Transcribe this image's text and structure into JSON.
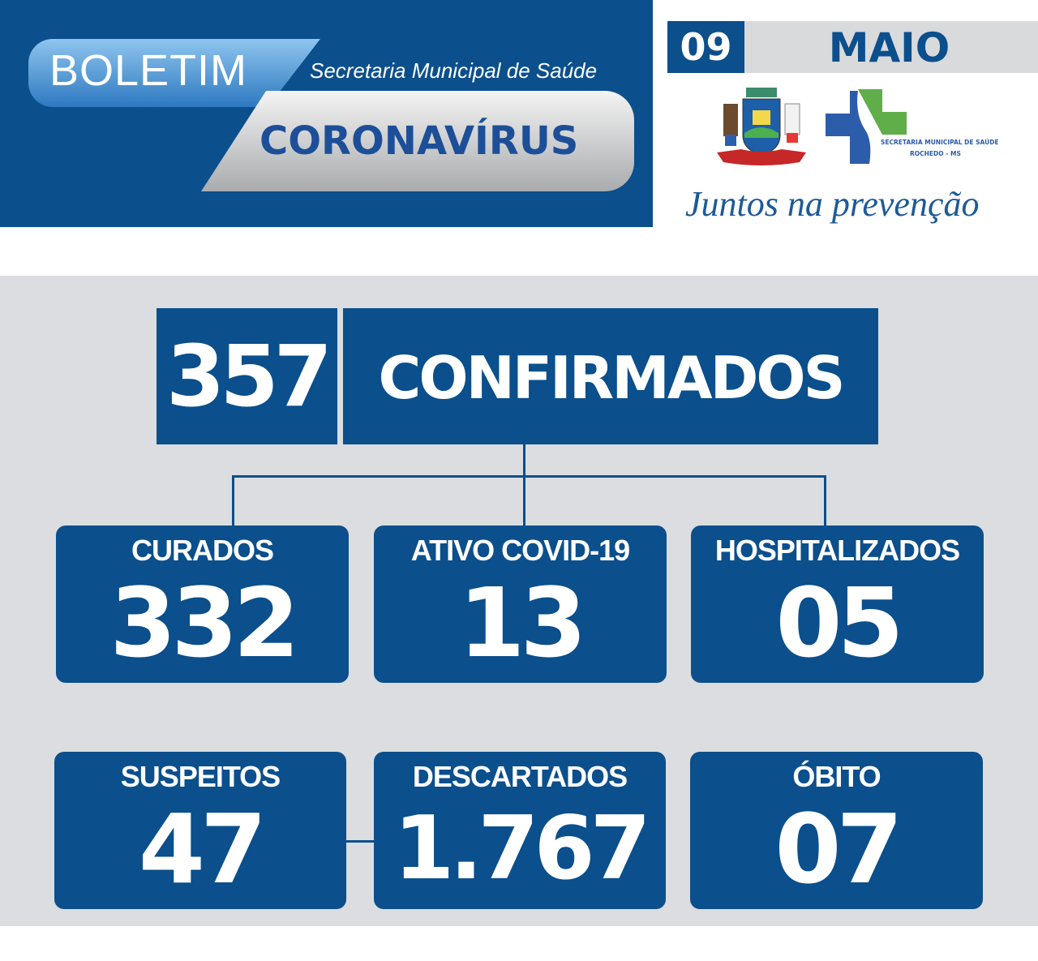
{
  "header": {
    "title": "BOLETIM",
    "subtitle": "Secretaria Municipal de Saúde",
    "topic": "CORONAVÍRUS"
  },
  "date": {
    "day": "09",
    "month": "MAIO"
  },
  "logos": {
    "crest_text": "ROCHEDO",
    "sms_line1": "SECRETARIA MUNICIPAL DE SAÚDE",
    "sms_line2": "ROCHEDO - MS"
  },
  "slogan": "Juntos na prevenção",
  "confirmed": {
    "value": "357",
    "label": "CONFIRMADOS"
  },
  "stats": [
    {
      "label": "CURADOS",
      "value": "332"
    },
    {
      "label": "ATIVO COVID-19",
      "value": "13"
    },
    {
      "label": "HOSPITALIZADOS",
      "value": "05"
    },
    {
      "label": "SUSPEITOS",
      "value": "47"
    },
    {
      "label": "DESCARTADOS",
      "value": "1.767"
    },
    {
      "label": "ÓBITO",
      "value": "07"
    }
  ],
  "colors": {
    "primary": "#0b4f8c",
    "panel": "#dcdde0",
    "green": "#5fae4a"
  }
}
